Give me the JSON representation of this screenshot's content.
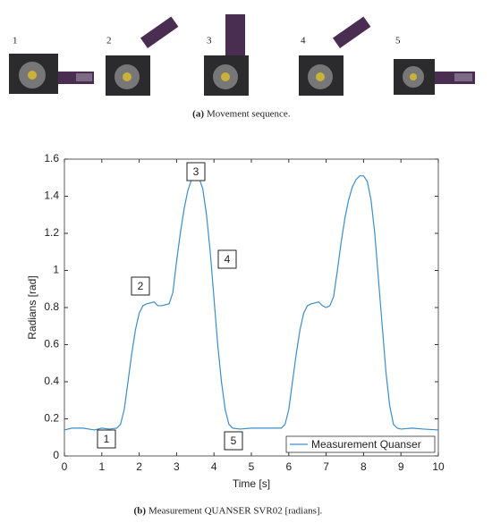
{
  "photos": {
    "labels": [
      "1",
      "2",
      "3",
      "4",
      "5"
    ],
    "caption": "(a)",
    "caption_text": "Movement sequence."
  },
  "chart_data": {
    "type": "line",
    "xlabel": "Time [s]",
    "ylabel": "Radians [rad]",
    "xlim": [
      0,
      10
    ],
    "xticks": [
      0,
      1,
      2,
      3,
      4,
      5,
      6,
      7,
      8,
      9,
      10
    ],
    "ylim": [
      0,
      1.6
    ],
    "yticks": [
      0,
      0.2,
      0.4,
      0.6,
      0.8,
      1,
      1.2,
      1.4,
      1.6
    ],
    "legend": "lower right",
    "series": [
      {
        "name": "Measurement Quanser",
        "color": "#3c8dc8",
        "x": [
          0,
          0.2,
          0.5,
          0.8,
          1.0,
          1.2,
          1.4,
          1.5,
          1.6,
          1.7,
          1.8,
          1.9,
          2.0,
          2.1,
          2.2,
          2.4,
          2.5,
          2.6,
          2.8,
          2.9,
          3.0,
          3.1,
          3.2,
          3.3,
          3.4,
          3.5,
          3.6,
          3.7,
          3.8,
          3.9,
          4.0,
          4.1,
          4.2,
          4.3,
          4.4,
          4.5,
          4.7,
          5.0,
          5.5,
          5.8,
          5.9,
          6.0,
          6.1,
          6.2,
          6.3,
          6.4,
          6.5,
          6.6,
          6.8,
          6.9,
          7.0,
          7.1,
          7.2,
          7.3,
          7.4,
          7.5,
          7.6,
          7.7,
          7.8,
          7.9,
          8.0,
          8.1,
          8.2,
          8.3,
          8.4,
          8.5,
          8.6,
          8.7,
          8.8,
          8.9,
          9.0,
          9.3,
          9.6,
          10
        ],
        "values": [
          0.14,
          0.15,
          0.15,
          0.14,
          0.15,
          0.145,
          0.15,
          0.17,
          0.25,
          0.4,
          0.55,
          0.68,
          0.77,
          0.81,
          0.82,
          0.83,
          0.81,
          0.81,
          0.82,
          0.88,
          1.05,
          1.2,
          1.33,
          1.43,
          1.49,
          1.51,
          1.5,
          1.44,
          1.3,
          1.1,
          0.85,
          0.6,
          0.4,
          0.25,
          0.17,
          0.15,
          0.145,
          0.15,
          0.15,
          0.15,
          0.17,
          0.25,
          0.4,
          0.55,
          0.68,
          0.77,
          0.81,
          0.82,
          0.83,
          0.81,
          0.8,
          0.81,
          0.86,
          1.0,
          1.15,
          1.28,
          1.38,
          1.45,
          1.49,
          1.51,
          1.51,
          1.48,
          1.38,
          1.2,
          0.95,
          0.7,
          0.45,
          0.27,
          0.17,
          0.15,
          0.145,
          0.15,
          0.145,
          0.14
        ]
      }
    ],
    "annotations": [
      "1",
      "2",
      "3",
      "4",
      "5"
    ],
    "caption": "(b)",
    "caption_text": "Measurement QUANSER SVR02 [radians]."
  }
}
